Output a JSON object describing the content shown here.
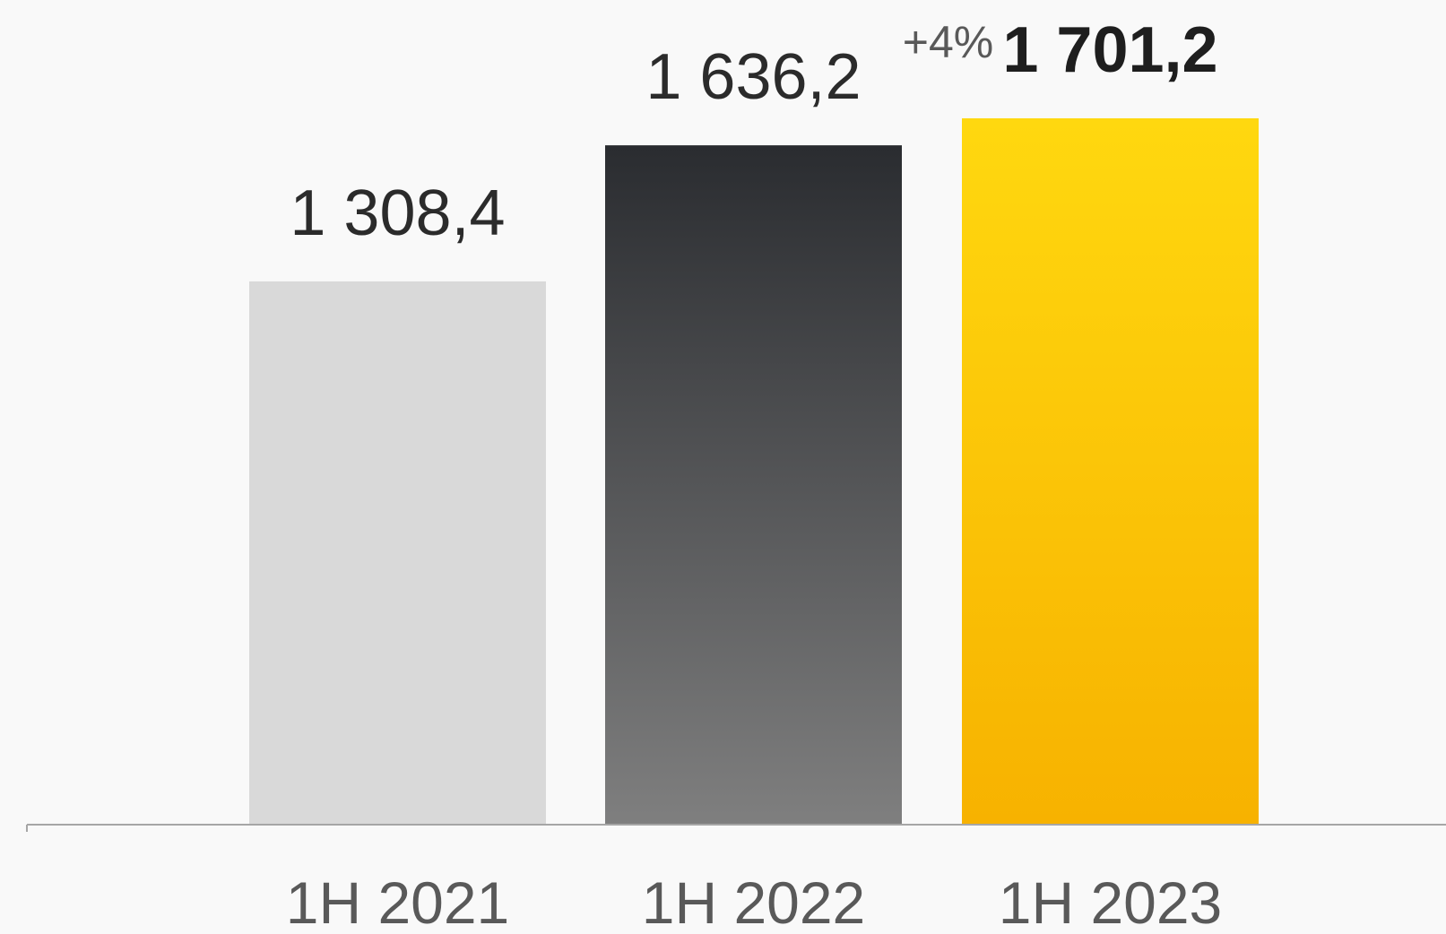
{
  "chart_data": {
    "type": "bar",
    "categories": [
      "1H 2021",
      "1H 2022",
      "1H 2023"
    ],
    "values": [
      1308.4,
      1636.2,
      1701.2
    ],
    "value_labels": [
      "1 308,4",
      "1 636,2",
      "1 701,2"
    ],
    "title": "",
    "xlabel": "",
    "ylabel": "",
    "ylim": [
      0,
      1701.2
    ],
    "grid": false,
    "legend": "none",
    "annotations": [
      {
        "text": "+4%",
        "between": [
          "1H 2022",
          "1H 2023"
        ]
      }
    ],
    "bar_colors": [
      {
        "top": "#d9d9d9",
        "bottom": "#d9d9d9"
      },
      {
        "top": "#2a2c30",
        "bottom": "#7f7f7f"
      },
      {
        "top": "#ffd80f",
        "bottom": "#f7b200"
      }
    ],
    "label_colors": [
      "#2b2b2b",
      "#2b2b2b",
      "#1e1e1e"
    ],
    "label_weights": [
      "normal",
      "normal",
      "bold"
    ],
    "axis_color": "#a6a6a6",
    "category_label_color": "#595959",
    "annotation_color": "#595959",
    "background": "#f9f9f9"
  }
}
